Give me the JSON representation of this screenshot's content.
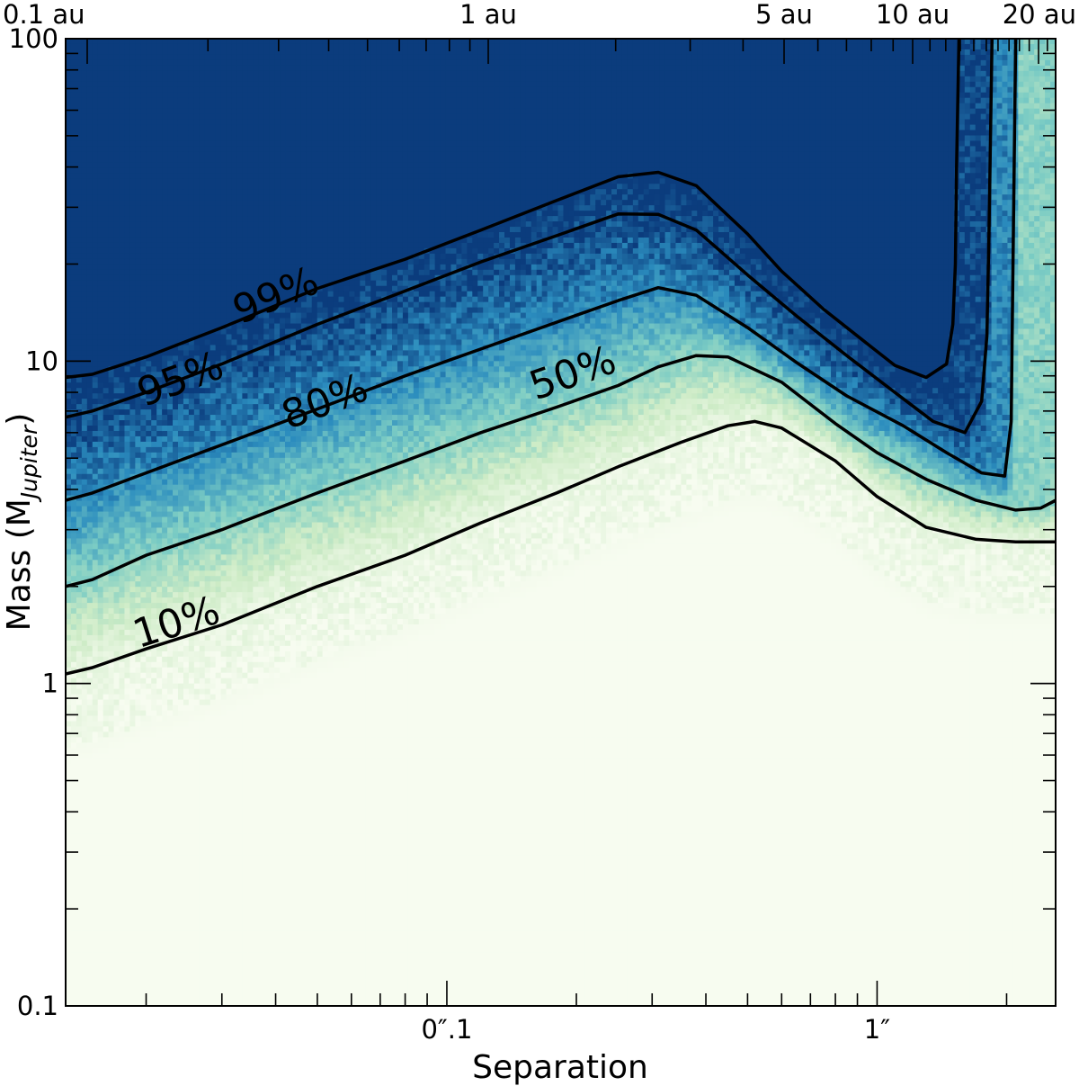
{
  "chart_data": {
    "type": "heatmap",
    "title": "",
    "xlabel": "Separation",
    "ylabel_main": "Mass (M",
    "ylabel_sub": "Jupiter",
    "ylabel_close": ")",
    "x_scale": "log",
    "y_scale": "log",
    "xlim_arcsec": [
      0.013,
      2.6
    ],
    "ylim_mass": [
      0.1,
      100
    ],
    "grid": false,
    "legend": "none",
    "colormap": {
      "low": "#f7fcf0",
      "mid_low": "#ccebc5",
      "mid": "#7bccc4",
      "mid_high": "#2b8cbe",
      "high": "#0b3c7d"
    },
    "bottom_ticks": [
      {
        "value": 0.1,
        "label": "0″.1"
      },
      {
        "value": 1,
        "label": "1″"
      }
    ],
    "top_ticks": [
      {
        "value": 0.1,
        "label": "0.1 au"
      },
      {
        "value": 1,
        "label": "1 au"
      },
      {
        "value": 5,
        "label": "5 au"
      },
      {
        "value": 10,
        "label": "10 au"
      },
      {
        "value": 20,
        "label": "20 au"
      }
    ],
    "y_ticks": [
      {
        "value": 0.1,
        "label": "0.1"
      },
      {
        "value": 1,
        "label": "1"
      },
      {
        "value": 10,
        "label": "10"
      },
      {
        "value": 100,
        "label": "100"
      }
    ],
    "contours": [
      {
        "level": "99%",
        "points": [
          [
            0.013,
            8.9
          ],
          [
            0.015,
            9.1
          ],
          [
            0.02,
            10.3
          ],
          [
            0.03,
            12.7
          ],
          [
            0.05,
            16.8
          ],
          [
            0.08,
            20.7
          ],
          [
            0.12,
            25.5
          ],
          [
            0.18,
            31.5
          ],
          [
            0.25,
            37.3
          ],
          [
            0.31,
            38.5
          ],
          [
            0.38,
            35.0
          ],
          [
            0.5,
            24.8
          ],
          [
            0.6,
            19.0
          ],
          [
            0.75,
            14.5
          ],
          [
            0.95,
            11.3
          ],
          [
            1.1,
            9.7
          ],
          [
            1.3,
            8.9
          ],
          [
            1.45,
            9.8
          ],
          [
            1.5,
            13.0
          ],
          [
            1.52,
            20
          ],
          [
            1.53,
            40
          ],
          [
            1.55,
            100
          ]
        ],
        "label_at": [
          0.04,
          16.0
        ]
      },
      {
        "level": "95%",
        "points": [
          [
            0.013,
            6.7
          ],
          [
            0.015,
            7.0
          ],
          [
            0.02,
            8.0
          ],
          [
            0.03,
            9.8
          ],
          [
            0.05,
            13.0
          ],
          [
            0.08,
            16.5
          ],
          [
            0.12,
            20.3
          ],
          [
            0.18,
            24.5
          ],
          [
            0.25,
            28.6
          ],
          [
            0.31,
            28.5
          ],
          [
            0.38,
            25.5
          ],
          [
            0.5,
            18.5
          ],
          [
            0.65,
            13.8
          ],
          [
            0.85,
            10.4
          ],
          [
            1.1,
            8.0
          ],
          [
            1.35,
            6.5
          ],
          [
            1.6,
            6.0
          ],
          [
            1.75,
            7.5
          ],
          [
            1.8,
            12
          ],
          [
            1.82,
            25
          ],
          [
            1.85,
            100
          ]
        ],
        "label_at": [
          0.024,
          8.8
        ]
      },
      {
        "level": "80%",
        "points": [
          [
            0.013,
            3.7
          ],
          [
            0.015,
            3.9
          ],
          [
            0.02,
            4.5
          ],
          [
            0.03,
            5.5
          ],
          [
            0.05,
            7.1
          ],
          [
            0.08,
            9.0
          ],
          [
            0.12,
            10.9
          ],
          [
            0.18,
            13.2
          ],
          [
            0.25,
            15.4
          ],
          [
            0.31,
            16.9
          ],
          [
            0.38,
            16.0
          ],
          [
            0.5,
            12.7
          ],
          [
            0.65,
            9.9
          ],
          [
            0.85,
            7.8
          ],
          [
            1.15,
            6.3
          ],
          [
            1.45,
            5.2
          ],
          [
            1.75,
            4.5
          ],
          [
            1.98,
            4.4
          ],
          [
            2.05,
            6.5
          ],
          [
            2.07,
            20
          ],
          [
            2.1,
            100
          ]
        ],
        "label_at": [
          0.052,
          7.5
        ]
      },
      {
        "level": "50%",
        "points": [
          [
            0.013,
            2.0
          ],
          [
            0.015,
            2.1
          ],
          [
            0.02,
            2.5
          ],
          [
            0.03,
            3.0
          ],
          [
            0.05,
            3.9
          ],
          [
            0.08,
            4.9
          ],
          [
            0.12,
            6.0
          ],
          [
            0.18,
            7.2
          ],
          [
            0.25,
            8.4
          ],
          [
            0.31,
            9.6
          ],
          [
            0.38,
            10.4
          ],
          [
            0.45,
            10.3
          ],
          [
            0.6,
            8.6
          ],
          [
            0.8,
            6.4
          ],
          [
            1.0,
            5.2
          ],
          [
            1.3,
            4.3
          ],
          [
            1.7,
            3.7
          ],
          [
            2.1,
            3.45
          ],
          [
            2.4,
            3.5
          ],
          [
            2.6,
            3.7
          ]
        ],
        "label_at": [
          0.196,
          9.2
        ]
      },
      {
        "level": "10%",
        "points": [
          [
            0.013,
            1.07
          ],
          [
            0.015,
            1.12
          ],
          [
            0.02,
            1.28
          ],
          [
            0.03,
            1.52
          ],
          [
            0.05,
            2.0
          ],
          [
            0.08,
            2.5
          ],
          [
            0.12,
            3.15
          ],
          [
            0.18,
            3.9
          ],
          [
            0.25,
            4.7
          ],
          [
            0.35,
            5.6
          ],
          [
            0.45,
            6.3
          ],
          [
            0.52,
            6.5
          ],
          [
            0.6,
            6.2
          ],
          [
            0.8,
            4.9
          ],
          [
            1.0,
            3.8
          ],
          [
            1.3,
            3.05
          ],
          [
            1.7,
            2.8
          ],
          [
            2.1,
            2.75
          ],
          [
            2.6,
            2.75
          ]
        ],
        "label_at": [
          0.0235,
          1.55
        ]
      }
    ]
  }
}
